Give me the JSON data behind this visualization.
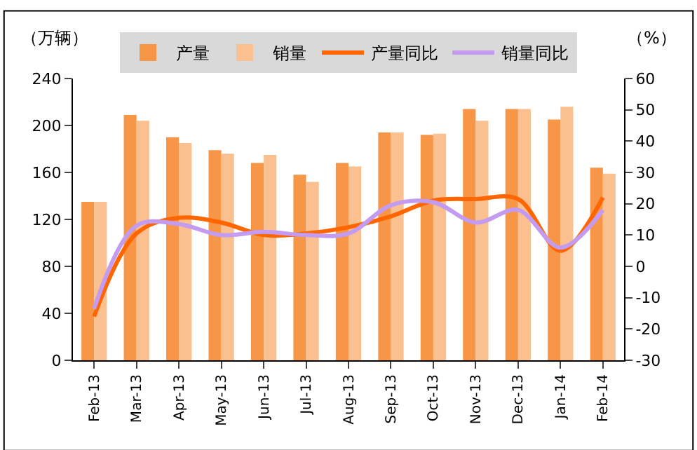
{
  "chart_data": {
    "type": "bar",
    "ylabel": "（万辆）",
    "y2label": "（%）",
    "categories": [
      "Feb-13",
      "Mar-13",
      "Apr-13",
      "May-13",
      "Jun-13",
      "Jul-13",
      "Aug-13",
      "Sep-13",
      "Oct-13",
      "Nov-13",
      "Dec-13",
      "Jan-14",
      "Feb-14"
    ],
    "series": [
      {
        "name": "产量",
        "color": "#f79646",
        "values": [
          135,
          209,
          190,
          179,
          168,
          158,
          168,
          194,
          192,
          214,
          214,
          205,
          164
        ]
      },
      {
        "name": "销量",
        "color": "#fac08f",
        "values": [
          135,
          204,
          185,
          176,
          175,
          152,
          165,
          194,
          193,
          204,
          214,
          216,
          159
        ]
      },
      {
        "name": "产量同比",
        "type": "line",
        "axis": "y2",
        "color": "#ff6600",
        "values": [
          -16,
          10.5,
          15.5,
          14,
          10,
          10.5,
          12.5,
          16,
          21,
          21.5,
          21.5,
          5,
          22
        ]
      },
      {
        "name": "销量同比",
        "type": "line",
        "axis": "y2",
        "color": "#c39bf0",
        "values": [
          -13.5,
          13,
          13.5,
          10,
          11,
          10,
          10.5,
          19.5,
          20.5,
          14,
          18,
          6,
          18
        ]
      }
    ],
    "ylim": [
      0,
      240
    ],
    "yticks": [
      0,
      40,
      80,
      120,
      160,
      200,
      240
    ],
    "y2lim": [
      -30,
      60
    ],
    "y2ticks": [
      -30,
      -20,
      -10,
      0,
      10,
      20,
      30,
      40,
      50,
      60
    ],
    "legend": "top",
    "marker": "none",
    "line_style": "solid"
  }
}
